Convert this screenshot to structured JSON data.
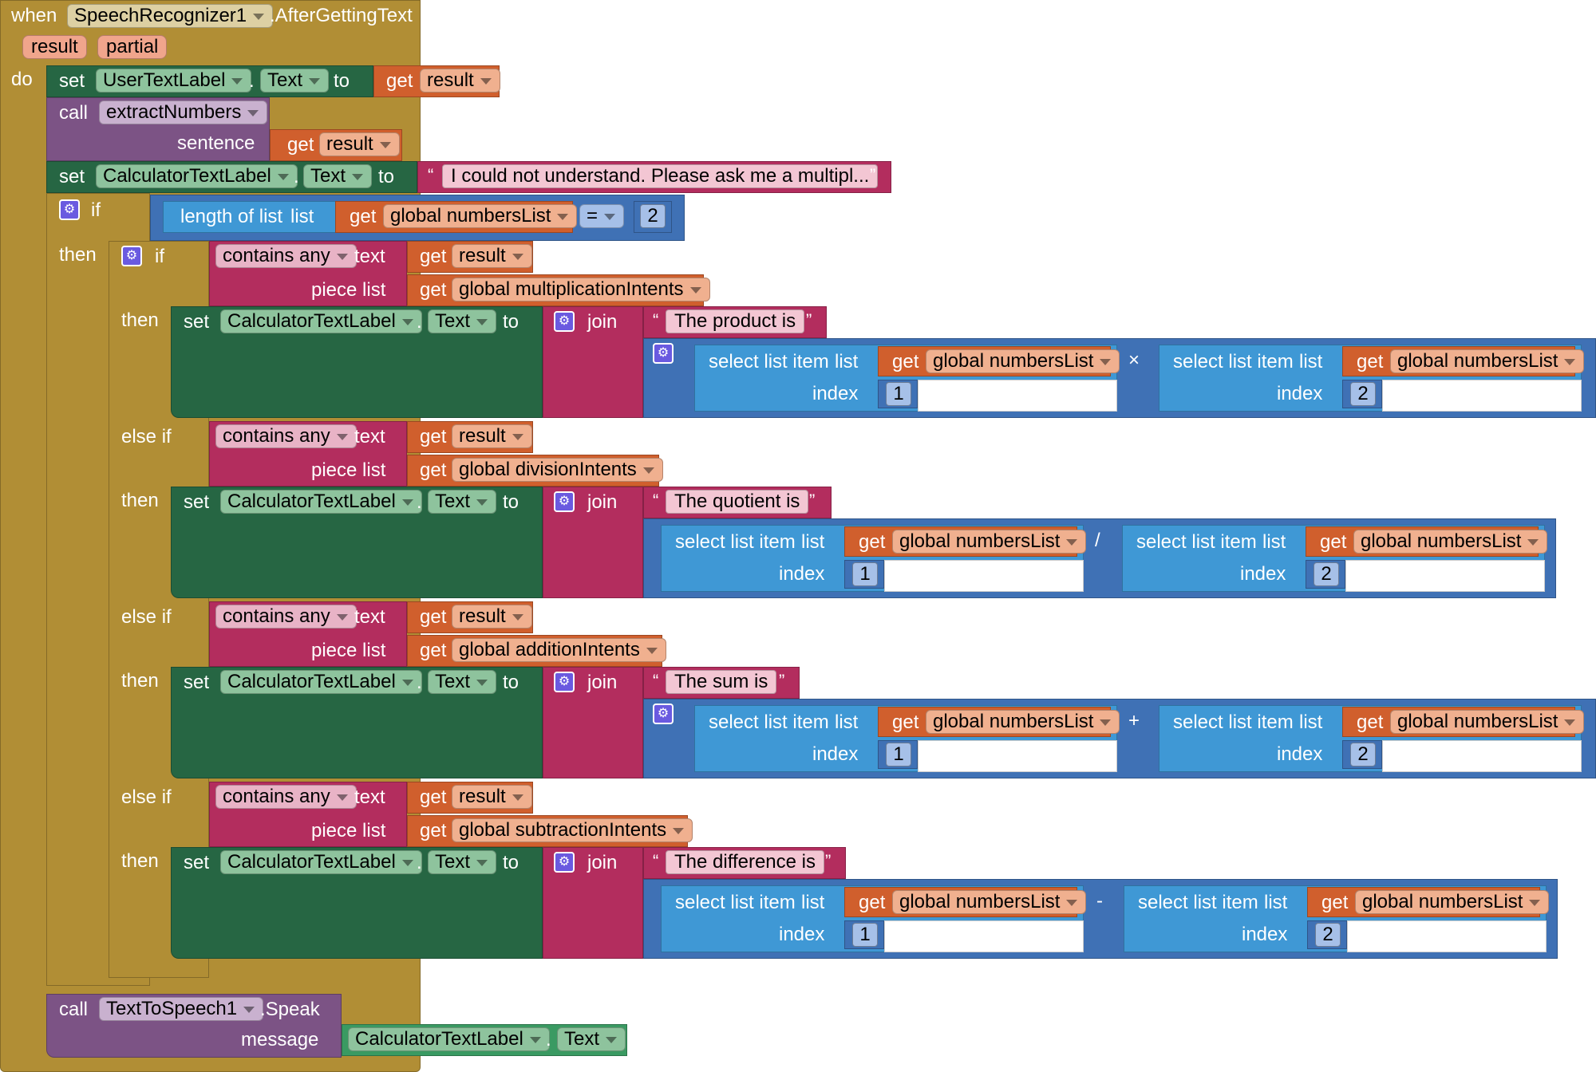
{
  "event": {
    "when": "when",
    "component": "SpeechRecognizer1",
    "event_name": ".AfterGettingText",
    "params": [
      "result",
      "partial"
    ],
    "do": "do"
  },
  "kw": {
    "set": "set",
    "to": "to",
    "get": "get",
    "call": "call",
    "if": "if",
    "then": "then",
    "else_if": "else if",
    "join": "join",
    "contains_any": "contains any",
    "text": "text",
    "piece_list": "piece list",
    "select_list_item": "select list item",
    "list": "list",
    "index": "index",
    "length_of_list": "length of list",
    "dot": ".",
    "lquote": "“",
    "rquote": "”"
  },
  "vars": {
    "result": "result",
    "numbersList": "global numbersList",
    "multiplicationIntents": "global multiplicationIntents",
    "divisionIntents": "global divisionIntents",
    "additionIntents": "global additionIntents",
    "subtractionIntents": "global subtractionIntents"
  },
  "components": {
    "user_label": "UserTextLabel",
    "calc_label": "CalculatorTextLabel",
    "text_prop": "Text",
    "tts": "TextToSpeech1",
    "speak": ".Speak",
    "message": "message"
  },
  "procedure": {
    "name": "extractNumbers",
    "arg": "sentence"
  },
  "strings": {
    "not_understand": "I could not understand.  Please ask me a multipl...",
    "product": "The product is",
    "quotient": "The quotient is",
    "sum": "The sum is",
    "difference": "The difference is"
  },
  "compare": {
    "op": "=",
    "value": "2"
  },
  "ops": {
    "mul": "×",
    "div": "/",
    "add": "+",
    "sub": "-"
  },
  "indices": {
    "first": "1",
    "second": "2"
  },
  "colors": {
    "control": "#b18e35",
    "component": "#266643",
    "procedure": "#7c5385",
    "variable": "#d05f2d",
    "list": "#3f98d5",
    "text": "#b32d5e",
    "math": "#3f71b5"
  }
}
